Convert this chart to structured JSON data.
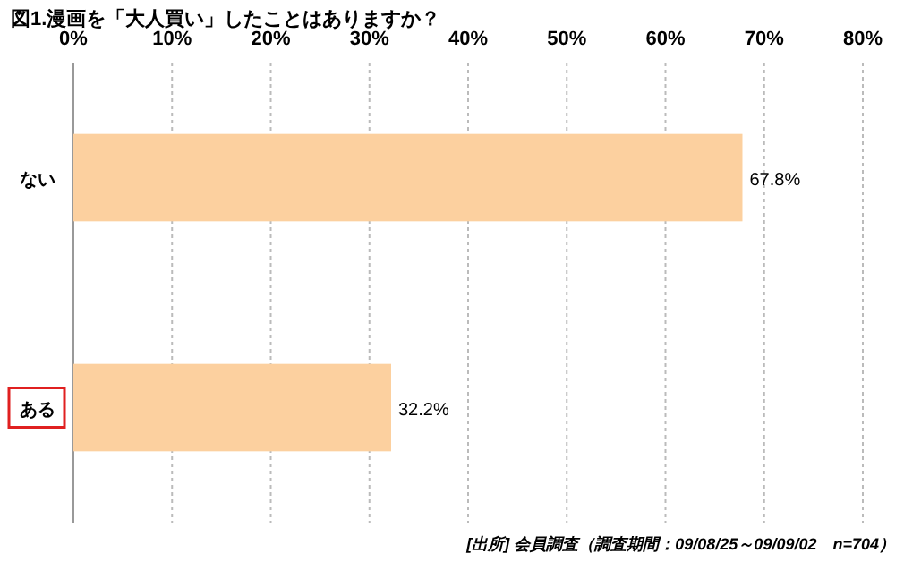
{
  "chart_data": {
    "type": "bar",
    "orientation": "horizontal",
    "title": "図1.漫画を「大人買い」したことはありますか？",
    "categories": [
      "ない",
      "ある"
    ],
    "values": [
      67.8,
      32.2
    ],
    "value_labels": [
      "67.8%",
      "32.2%"
    ],
    "color": "#fcd09f",
    "xlim": [
      0,
      80
    ],
    "xticks": [
      {
        "value": 0,
        "label": "0%"
      },
      {
        "value": 10,
        "label": "10%"
      },
      {
        "value": 20,
        "label": "20%"
      },
      {
        "value": 30,
        "label": "30%"
      },
      {
        "value": 40,
        "label": "40%"
      },
      {
        "value": 50,
        "label": "50%"
      },
      {
        "value": 60,
        "label": "60%"
      },
      {
        "value": 70,
        "label": "70%"
      },
      {
        "value": 80,
        "label": "80%"
      }
    ],
    "grid": "x",
    "annotations": [
      "[出所] 会員調査（調査期間：09/08/25～09/09/02　n=704）"
    ]
  }
}
